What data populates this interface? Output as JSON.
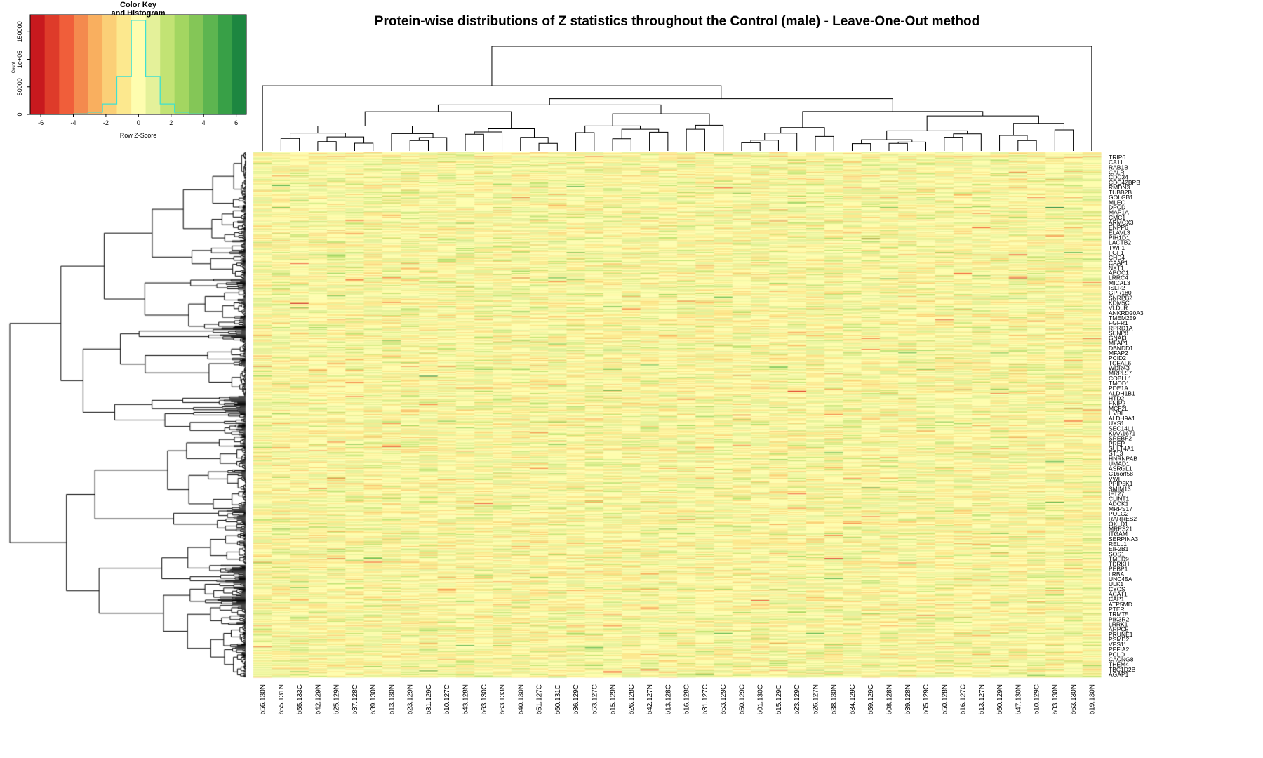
{
  "chart_data": {
    "type": "heatmap",
    "title": "Protein-wise distributions of Z statistics throughout the Control (male) - Leave-One-Out method",
    "dendrograms": {
      "rows": true,
      "columns": true
    },
    "columns": [
      "b56.130N",
      "b55.131N",
      "b55.133C",
      "b42.129N",
      "b25.129N",
      "b37.128C",
      "b39.130N",
      "b13.130N",
      "b23.129N",
      "b31.129C",
      "b10.127C",
      "b43.128N",
      "b63.130C",
      "b63.133N",
      "b40.130N",
      "b51.127C",
      "b60.131C",
      "b36.129C",
      "b53.127C",
      "b15.129N",
      "b26.128C",
      "b42.127N",
      "b13.128C",
      "b16.128C",
      "b31.127C",
      "b53.129C",
      "b50.129C",
      "b01.130C",
      "b15.129C",
      "b23.129C",
      "b26.127N",
      "b38.130N",
      "b34.129C",
      "b59.129C",
      "b08.128N",
      "b39.128N",
      "b05.129C",
      "b50.128N",
      "b16.127C",
      "b13.127N",
      "b60.129N",
      "b47.130N",
      "b10.129C",
      "b03.130N",
      "b63.130N",
      "b19.130N"
    ],
    "row_labels": [
      "TRIP6",
      "CA11",
      "RAB1B",
      "CALR",
      "CDC34",
      "CDC42BPB",
      "RMDN3",
      "TUBB2B",
      "GOLGB1",
      "MLEC",
      "DPCD",
      "MAP1A",
      "CMC1",
      "ARMCX3",
      "ENPP6",
      "ELAVL3",
      "PIH1D1",
      "LACTB2",
      "TWF1",
      "FGF1",
      "CHD4",
      "CAAP1",
      "NXT1",
      "APOC1",
      "LRRC4",
      "MICAL3",
      "ISLR2",
      "GPR180",
      "SNRPB2",
      "KDM5C",
      "VLDLR",
      "ANKRD20A3",
      "TMEM259",
      "FGFR1",
      "RPRD1A",
      "SENP8",
      "GNAI3",
      "MFAP1",
      "DBNDD1",
      "MFAP2",
      "PCID2",
      "TCEAL6",
      "WDR43",
      "MRPL57",
      "COBLL1",
      "TMOD1",
      "PDE1A",
      "ALDH1B1",
      "HTD2",
      "FNIP2",
      "MCF2L",
      "ILVBL",
      "ALDH9A1",
      "UXS1",
      "SEC14L1",
      "KIAA1671",
      "SREBF2",
      "PREP",
      "SULT4A1",
      "ST13",
      "HNRNPAB",
      "UMAD1",
      "ASRGL1",
      "C16orf58",
      "VWF",
      "PPIP5K1",
      "SMIM13",
      "IFT27",
      "CLINT1",
      "ADCK1",
      "MRPS17",
      "POLG2",
      "RARRES2",
      "OXLD1",
      "MRPS21",
      "ITGAM",
      "SERPINA3",
      "RELL1",
      "EIF2B1",
      "SOS1",
      "TMED9",
      "TDRKH",
      "PEBP1",
      "LRBA",
      "UNC45A",
      "ULK1",
      "CYCS",
      "ACAT1",
      "CAP1",
      "ATP5MD",
      "PTER",
      "TRMT5",
      "PIK3R2",
      "LRRK1",
      "ARPC5",
      "PRUNE1",
      "PSMD2",
      "VPS11",
      "PPFIA2",
      "PCLO",
      "CACNG8",
      "THEM4",
      "TBC1D2B",
      "AGAP1"
    ],
    "color_key": {
      "title_line1": "Color Key",
      "title_line2": "and Histogram",
      "xlabel": "Row Z-Score",
      "ylabel": "Count",
      "xlim": [
        -6.65,
        6.62
      ],
      "ylim": [
        0,
        181000
      ],
      "x_ticks": [
        "-6",
        "-4",
        "-2",
        "0",
        "2",
        "4",
        "6"
      ],
      "y_ticks": [
        "0",
        "50000",
        "1e+05",
        "150000"
      ],
      "colors": [
        "#C8191E",
        "#DE3B2A",
        "#F05E3A",
        "#F48A4E",
        "#F9AF5F",
        "#FBCF77",
        "#FCE88E",
        "#FEFDAF",
        "#E4F19A",
        "#C2E374",
        "#A3D661",
        "#84C657",
        "#5DB550",
        "#38A047",
        "#1D8640"
      ],
      "bin_edges": [
        -6.65,
        -5.76,
        -4.87,
        -3.98,
        -3.1,
        -2.21,
        -1.33,
        -0.44,
        0.44,
        1.33,
        2.21,
        3.1,
        3.98,
        4.87,
        5.76,
        6.62
      ],
      "histogram_counts": [
        0,
        0,
        0,
        1000,
        4000,
        19000,
        69000,
        171000,
        69000,
        19000,
        4000,
        1000,
        0,
        0,
        0
      ],
      "histogram_color": "#40E0D0"
    }
  }
}
